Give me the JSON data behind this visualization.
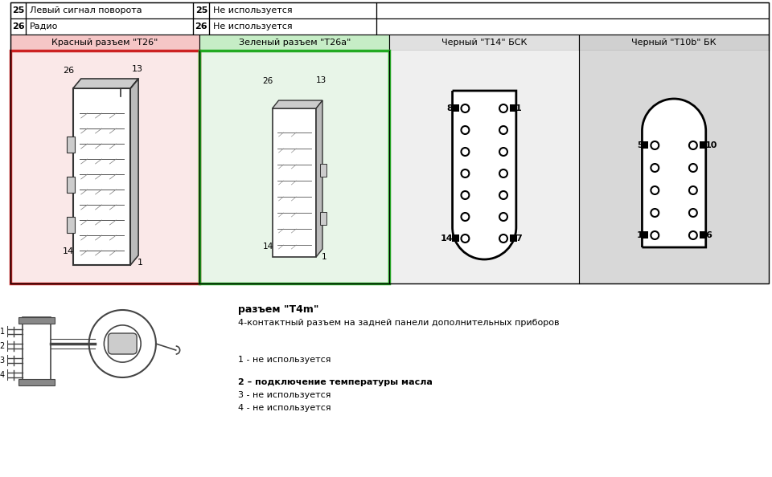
{
  "bg_color": "#ffffff",
  "row25_num": "25",
  "row25_left": "Левый сигнал поворота",
  "row25_right_num": "25",
  "row25_right": "Не используется",
  "row26_num": "26",
  "row26_left": "Радио",
  "row26_right_num": "26",
  "row26_right": "Не используется",
  "header1": "Красный разъем \"T26\"",
  "header2": "Зеленый разъем \"T26a\"",
  "header3": "Черный \"T14\" БСК",
  "header4": "Черный \"T10b\" БК",
  "header1_bg": "#f5c6c6",
  "header2_bg": "#c6edc6",
  "header3_bg": "#e0e0e0",
  "header4_bg": "#d0d0d0",
  "connector_section_bg1": "#fae8e8",
  "connector_section_bg2": "#e8f5e8",
  "connector_section_bg3": "#efefef",
  "connector_section_bg4": "#d8d8d8",
  "bottom_title": "разъем \"T4m\"",
  "bottom_subtitle": "4-контактный разъем на задней панели дополнительных приборов",
  "bottom_line1": "1 - не используется",
  "bottom_line2_bold": "2 – подключение температуры масла",
  "bottom_line3": "3 - не используется",
  "bottom_line4": "4 - не используется"
}
